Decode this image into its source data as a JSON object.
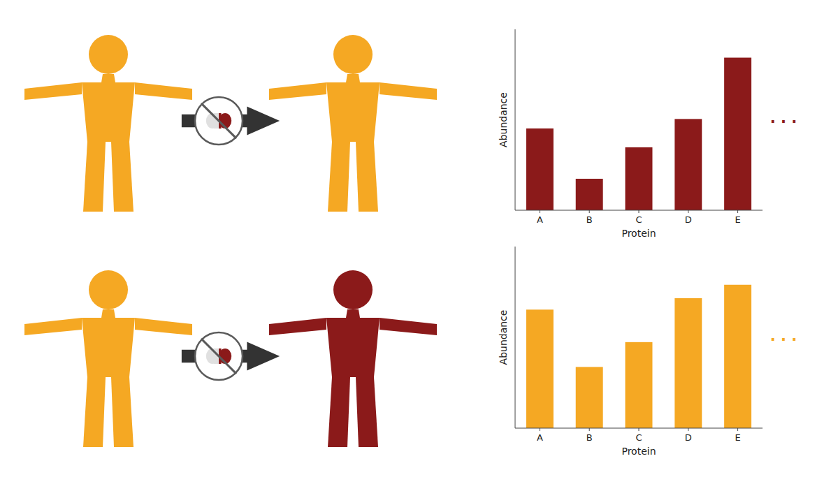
{
  "chart_data": [
    {
      "type": "bar",
      "categories": [
        "A",
        "B",
        "C",
        "D",
        "E"
      ],
      "values": [
        0.62,
        0.32,
        0.45,
        0.68,
        0.75
      ],
      "color": "#F5A823",
      "xlabel": "Protein",
      "ylabel": "Abundance",
      "ylim": [
        0,
        0.95
      ],
      "tick_labels": "x",
      "annotations": [
        ". . ."
      ]
    },
    {
      "type": "bar",
      "categories": [
        "A",
        "B",
        "C",
        "D",
        "E"
      ],
      "values": [
        0.52,
        0.2,
        0.4,
        0.58,
        0.97
      ],
      "color": "#8B1A1A",
      "xlabel": "Protein",
      "ylabel": "Abundance",
      "ylim": [
        0,
        1.15
      ],
      "tick_labels": "x",
      "annotations": [
        ". . ."
      ]
    }
  ]
}
